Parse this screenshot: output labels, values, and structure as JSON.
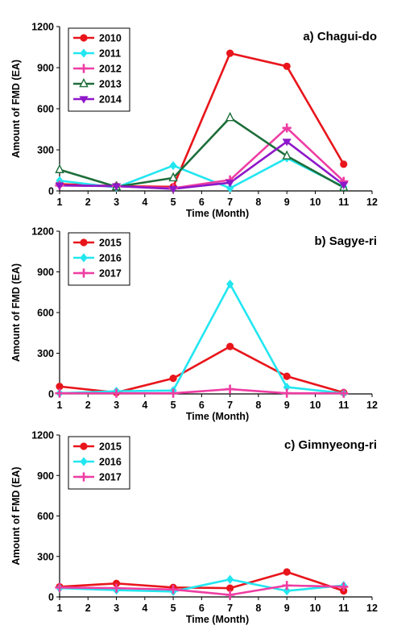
{
  "figure": {
    "ylabel": "Amount of FMD (EA)",
    "xlabel": "Time (Month)"
  },
  "chart_data": [
    {
      "type": "line",
      "title": "a) Chagui-do",
      "xlabel": "Time (Month)",
      "ylabel": "Amount of FMD (EA)",
      "xlim": [
        1,
        12
      ],
      "ylim": [
        0,
        1200
      ],
      "xticks": [
        1,
        2,
        3,
        4,
        5,
        6,
        7,
        8,
        9,
        10,
        11,
        12
      ],
      "yticks": [
        0,
        300,
        600,
        900,
        1200
      ],
      "legend_position": "top-left",
      "grid": false,
      "x": [
        1,
        3,
        5,
        7,
        9,
        11
      ],
      "series": [
        {
          "name": "2010",
          "color": "#e8151b",
          "marker": "circle",
          "values": [
            50,
            35,
            30,
            1005,
            910,
            195
          ]
        },
        {
          "name": "2011",
          "color": "#22e6f0",
          "marker": "diamond",
          "values": [
            75,
            25,
            185,
            20,
            240,
            30
          ]
        },
        {
          "name": "2012",
          "color": "#ee3da3",
          "marker": "plus",
          "values": [
            40,
            35,
            20,
            80,
            460,
            70
          ]
        },
        {
          "name": "2013",
          "color": "#1d6e3a",
          "marker": "triangle-open",
          "values": [
            155,
            30,
            95,
            535,
            255,
            25
          ]
        },
        {
          "name": "2014",
          "color": "#8e17c9",
          "marker": "triangle-down",
          "values": [
            40,
            35,
            15,
            60,
            360,
            45
          ]
        }
      ]
    },
    {
      "type": "line",
      "title": "b) Sagye-ri",
      "xlabel": "Time (Month)",
      "ylabel": "Amount of FMD (EA)",
      "xlim": [
        1,
        12
      ],
      "ylim": [
        0,
        1200
      ],
      "xticks": [
        1,
        2,
        3,
        4,
        5,
        6,
        7,
        8,
        9,
        10,
        11,
        12
      ],
      "yticks": [
        0,
        300,
        600,
        900,
        1200
      ],
      "legend_position": "top-left",
      "grid": false,
      "x": [
        1,
        3,
        5,
        7,
        9,
        11
      ],
      "series": [
        {
          "name": "2015",
          "color": "#e8151b",
          "marker": "circle",
          "values": [
            55,
            10,
            115,
            350,
            130,
            10
          ]
        },
        {
          "name": "2016",
          "color": "#22e6f0",
          "marker": "diamond",
          "values": [
            5,
            20,
            25,
            810,
            50,
            5
          ]
        },
        {
          "name": "2017",
          "color": "#ee3da3",
          "marker": "plus",
          "values": [
            5,
            5,
            5,
            35,
            5,
            5
          ]
        }
      ]
    },
    {
      "type": "line",
      "title": "c) Gimnyeong-ri",
      "xlabel": "Time (Month)",
      "ylabel": "Amount of FMD (EA)",
      "xlim": [
        1,
        12
      ],
      "ylim": [
        0,
        1200
      ],
      "xticks": [
        1,
        2,
        3,
        4,
        5,
        6,
        7,
        8,
        9,
        10,
        11,
        12
      ],
      "yticks": [
        0,
        300,
        600,
        900,
        1200
      ],
      "legend_position": "top-left",
      "grid": false,
      "x": [
        1,
        3,
        5,
        7,
        9,
        11
      ],
      "series": [
        {
          "name": "2015",
          "color": "#e8151b",
          "marker": "circle",
          "values": [
            75,
            100,
            70,
            65,
            185,
            45
          ]
        },
        {
          "name": "2016",
          "color": "#22e6f0",
          "marker": "diamond",
          "values": [
            65,
            50,
            40,
            130,
            45,
            85
          ]
        },
        {
          "name": "2017",
          "color": "#ee3da3",
          "marker": "plus",
          "values": [
            70,
            65,
            55,
            15,
            85,
            75
          ]
        }
      ]
    }
  ]
}
